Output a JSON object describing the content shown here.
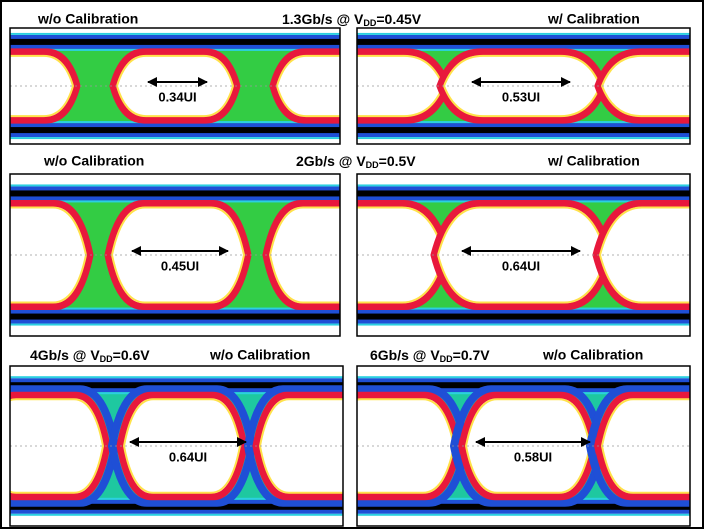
{
  "header_1": {
    "left": "w/o Calibration",
    "rate": "1.3Gb/s @ V",
    "subscript": "DD",
    "supply": "=0.45V",
    "right": "w/ Calibration"
  },
  "header_2": {
    "left": "w/o Calibration",
    "rate": "2Gb/s @ V",
    "subscript": "DD",
    "supply": "=0.5V",
    "right": "w/ Calibration"
  },
  "header_3": {
    "left_rate": "4Gb/s @ V",
    "left_subscript": "DD",
    "left_supply": "=0.6V",
    "left_mode": "w/o Calibration",
    "right_rate": "6Gb/s @ V",
    "right_subscript": "DD",
    "right_supply": "=0.7V",
    "right_mode": "w/o Calibration"
  },
  "eye_widths": [
    "0.34UI",
    "0.53UI",
    "0.45UI",
    "0.64UI",
    "0.64UI",
    "0.58UI"
  ]
}
